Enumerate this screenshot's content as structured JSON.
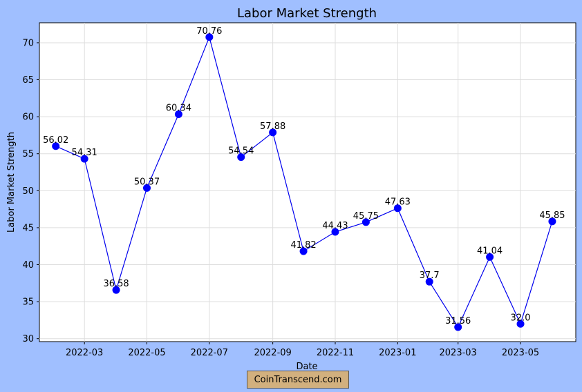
{
  "chart_data": {
    "type": "line",
    "title": "Labor Market Strength",
    "xlabel": "Date",
    "ylabel": "Labor Market Strength",
    "x": [
      "2022-02-01",
      "2022-03-01",
      "2022-04-01",
      "2022-05-01",
      "2022-06-01",
      "2022-07-01",
      "2022-08-01",
      "2022-09-01",
      "2022-10-01",
      "2022-11-01",
      "2022-12-01",
      "2023-01-01",
      "2023-02-01",
      "2023-03-01",
      "2023-04-01",
      "2023-05-01",
      "2023-06-01"
    ],
    "series": [
      {
        "values": [
          56.02,
          54.31,
          36.58,
          50.37,
          60.34,
          70.76,
          54.54,
          57.88,
          41.82,
          44.43,
          45.75,
          47.63,
          37.7,
          31.56,
          41.04,
          32.0,
          45.85
        ]
      }
    ],
    "data_labels": [
      "56.02",
      "54.31",
      "36.58",
      "50.37",
      "60.34",
      "70.76",
      "54.54",
      "57.88",
      "41.82",
      "44.43",
      "45.75",
      "47.63",
      "37.7",
      "31.56",
      "41.04",
      "32.0",
      "45.85"
    ],
    "x_ticks": [
      "2022-03",
      "2022-05",
      "2022-07",
      "2022-09",
      "2022-11",
      "2023-01",
      "2023-03",
      "2023-05"
    ],
    "x_tick_dates": [
      "2022-03-01",
      "2022-05-01",
      "2022-07-01",
      "2022-09-01",
      "2022-11-01",
      "2023-01-01",
      "2023-03-01",
      "2023-05-01"
    ],
    "y_ticks": [
      30,
      35,
      40,
      45,
      50,
      55,
      60,
      65,
      70
    ],
    "xlim": [
      "2022-01-16",
      "2023-06-24"
    ],
    "ylim": [
      29.6,
      72.7
    ],
    "grid": true,
    "line_color": "#0000ee",
    "marker_color": "#0000ff",
    "background_color": "#a0bfff"
  },
  "watermark": "CoinTranscend.com"
}
